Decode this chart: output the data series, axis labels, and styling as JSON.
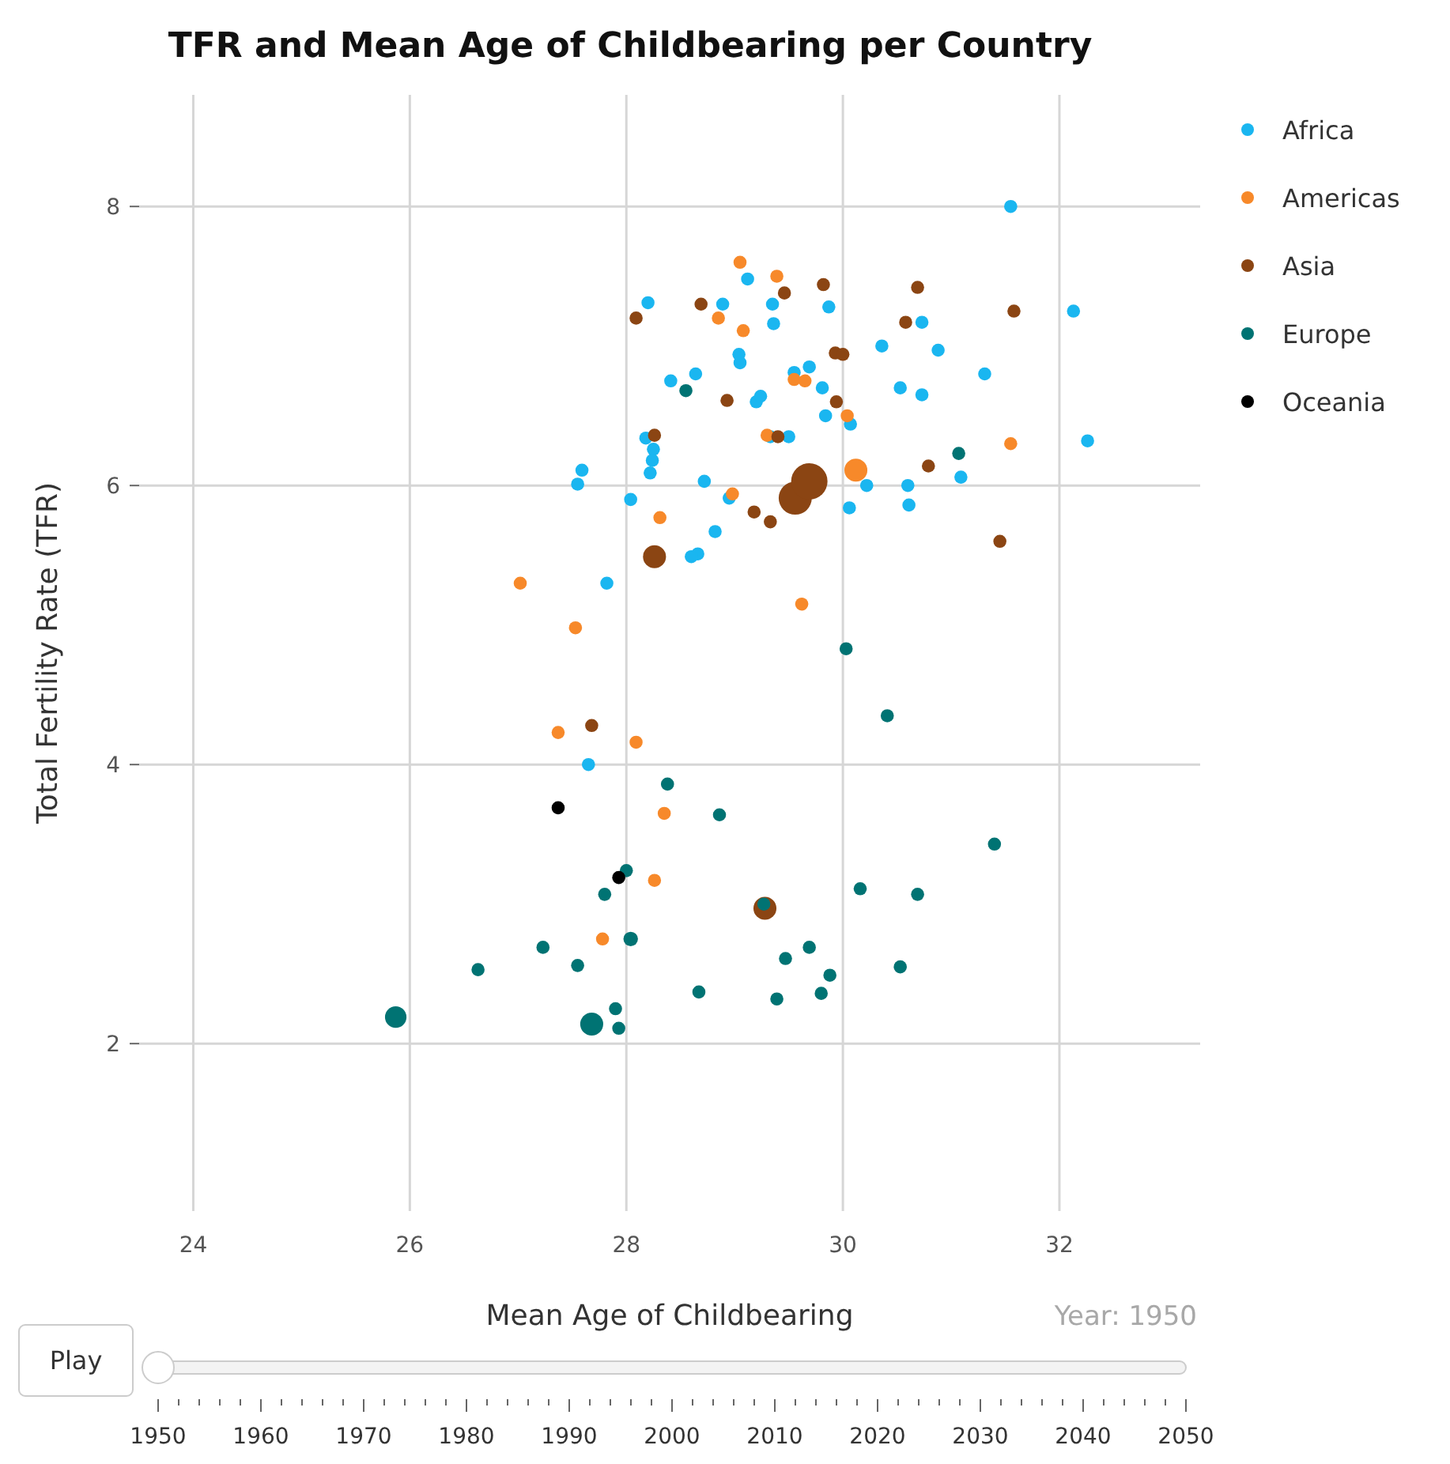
{
  "chart_data": {
    "type": "bubble",
    "title": "TFR and Mean Age of Childbearing per Country",
    "xlabel": "Mean Age of Childbearing",
    "ylabel": "Total Fertility Rate (TFR)",
    "xlim": [
      23.5,
      33.3
    ],
    "xticks": [
      24,
      26,
      28,
      30,
      32
    ],
    "ylim": [
      0.8,
      8.8
    ],
    "yticks": [
      2,
      4,
      6,
      8
    ],
    "grid": true,
    "legend": "top right",
    "marker": "circle",
    "annotations": [
      "Year: 1950",
      "Play",
      "1950",
      "1960",
      "1970",
      "1980",
      "1990",
      "2000",
      "2010",
      "2020",
      "2030",
      "2040",
      "2050"
    ],
    "series": [
      {
        "name": "Africa",
        "color": "#1ab6f0",
        "x": [
          31.55,
          32.13,
          32.26,
          28.2,
          28.89,
          29.12,
          29.35,
          29.36,
          29.87,
          28.41,
          28.64,
          29.04,
          29.05,
          29.2,
          29.24,
          28.18,
          28.25,
          28.24,
          28.22,
          27.59,
          27.55,
          28.04,
          28.72,
          28.95,
          28.82,
          28.66,
          28.6,
          27.82,
          27.65,
          30.73,
          30.36,
          30.88,
          31.31,
          30.53,
          30.73,
          29.81,
          29.69,
          29.84,
          30.07,
          29.33,
          29.5,
          31.09,
          30.22,
          30.6,
          30.06,
          30.61,
          29.55
        ],
        "values": [
          8.0,
          7.25,
          6.32,
          7.31,
          7.3,
          7.48,
          7.3,
          7.16,
          7.28,
          6.75,
          6.8,
          6.94,
          6.88,
          6.6,
          6.64,
          6.34,
          6.26,
          6.18,
          6.09,
          6.11,
          6.01,
          5.9,
          6.03,
          5.91,
          5.67,
          5.51,
          5.49,
          5.3,
          4.0,
          7.17,
          7.0,
          6.97,
          6.8,
          6.7,
          6.65,
          6.7,
          6.85,
          6.5,
          6.44,
          6.35,
          6.35,
          6.06,
          6.0,
          6.0,
          5.84,
          5.86,
          6.81
        ],
        "sizes": [
          0.13,
          0.13,
          0.13,
          0.13,
          0.13,
          0.13,
          0.13,
          0.13,
          0.13,
          0.13,
          0.13,
          0.13,
          0.13,
          0.13,
          0.13,
          0.13,
          0.13,
          0.13,
          0.13,
          0.13,
          0.13,
          0.13,
          0.13,
          0.13,
          0.13,
          0.13,
          0.13,
          0.13,
          0.13,
          0.13,
          0.13,
          0.13,
          0.13,
          0.13,
          0.13,
          0.13,
          0.13,
          0.13,
          0.13,
          0.13,
          0.13,
          0.13,
          0.13,
          0.13,
          0.13,
          0.13,
          0.13
        ]
      },
      {
        "name": "Americas",
        "color": "#f7892a",
        "x": [
          29.05,
          29.39,
          28.85,
          29.08,
          29.55,
          29.65,
          29.3,
          28.98,
          28.31,
          27.02,
          30.04,
          30.12,
          31.55,
          29.62,
          27.53,
          27.37,
          28.09,
          28.35,
          28.26,
          27.78
        ],
        "values": [
          7.6,
          7.5,
          7.2,
          7.11,
          6.76,
          6.75,
          6.36,
          5.94,
          5.77,
          5.3,
          6.5,
          6.11,
          6.3,
          5.15,
          4.98,
          4.23,
          4.16,
          3.65,
          3.17,
          2.75
        ],
        "sizes": [
          0.13,
          0.13,
          0.13,
          0.13,
          0.13,
          0.13,
          0.13,
          0.13,
          0.13,
          0.13,
          0.13,
          0.4,
          0.13,
          0.13,
          0.13,
          0.13,
          0.13,
          0.13,
          0.13,
          0.13
        ]
      },
      {
        "name": "Asia",
        "color": "#8b4513",
        "x": [
          29.46,
          28.69,
          28.09,
          28.93,
          28.26,
          29.4,
          29.18,
          29.33,
          28.26,
          29.56,
          29.69,
          29.82,
          30.69,
          31.58,
          30.58,
          29.93,
          30.0,
          29.94,
          30.79,
          31.45,
          27.68,
          29.28
        ],
        "values": [
          7.38,
          7.3,
          7.2,
          6.61,
          6.36,
          6.35,
          5.81,
          5.74,
          5.49,
          5.91,
          6.03,
          7.44,
          7.42,
          7.25,
          7.17,
          6.95,
          6.94,
          6.6,
          6.14,
          5.6,
          4.28,
          2.97
        ],
        "sizes": [
          0.13,
          0.13,
          0.13,
          0.13,
          0.13,
          0.13,
          0.13,
          0.13,
          0.4,
          0.83,
          1,
          0.13,
          0.13,
          0.13,
          0.13,
          0.13,
          0.13,
          0.13,
          0.13,
          0.13,
          0.13,
          0.4
        ]
      },
      {
        "name": "Europe",
        "color": "#007373",
        "x": [
          28.55,
          31.07,
          28.38,
          28.0,
          27.8,
          28.04,
          27.23,
          26.63,
          27.55,
          28.67,
          27.9,
          27.93,
          25.87,
          27.68,
          30.03,
          30.41,
          28.86,
          31.4,
          30.16,
          30.69,
          29.27,
          29.69,
          29.47,
          29.88,
          30.53,
          29.39,
          29.8
        ],
        "values": [
          6.68,
          6.23,
          3.86,
          3.24,
          3.07,
          2.75,
          2.69,
          2.53,
          2.56,
          2.37,
          2.25,
          2.11,
          2.19,
          2.14,
          4.83,
          4.35,
          3.64,
          3.43,
          3.11,
          3.07,
          3.0,
          2.69,
          2.61,
          2.49,
          2.55,
          2.32,
          2.36
        ],
        "sizes": [
          0.13,
          0.13,
          0.13,
          0.13,
          0.13,
          0.16,
          0.13,
          0.13,
          0.13,
          0.13,
          0.13,
          0.13,
          0.35,
          0.4,
          0.13,
          0.13,
          0.13,
          0.13,
          0.13,
          0.13,
          0.13,
          0.13,
          0.13,
          0.13,
          0.13,
          0.13,
          0.13
        ]
      },
      {
        "name": "Oceania",
        "color": "#000000",
        "x": [
          27.37,
          27.93
        ],
        "values": [
          3.69,
          3.19
        ],
        "sizes": [
          0.13,
          0.13
        ]
      }
    ]
  }
}
